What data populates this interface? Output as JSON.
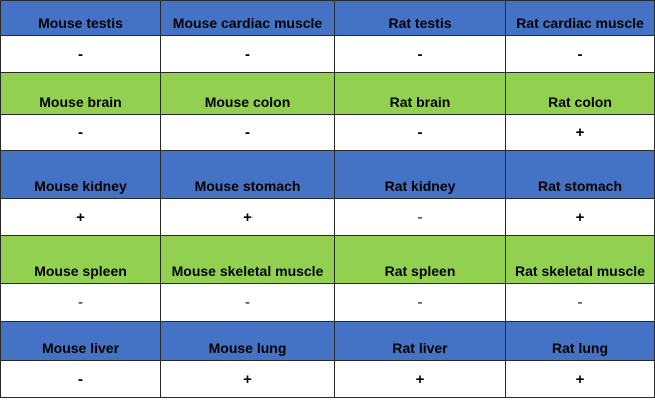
{
  "colors": {
    "blue_header": "#4472c4",
    "green_header": "#92d050"
  },
  "rows": [
    {
      "type": "header",
      "color": "blue",
      "cells": [
        "Mouse testis",
        "Mouse cardiac muscle",
        "Rat testis",
        "Rat cardiac muscle"
      ]
    },
    {
      "type": "values",
      "weight": "bold",
      "cells": [
        "-",
        "-",
        "-",
        "-"
      ]
    },
    {
      "type": "header",
      "color": "green",
      "cells": [
        "Mouse brain",
        "Mouse colon",
        "Rat brain",
        "Rat colon"
      ]
    },
    {
      "type": "values",
      "weight": "bold",
      "cells": [
        "-",
        "-",
        "-",
        "+"
      ]
    },
    {
      "type": "header",
      "color": "blue",
      "cells": [
        "Mouse kidney",
        "Mouse stomach",
        "Rat kidney",
        "Rat stomach"
      ]
    },
    {
      "type": "values",
      "weight": "mixed",
      "cells": [
        "+",
        "+",
        "-",
        "+"
      ]
    },
    {
      "type": "header",
      "color": "green",
      "cells": [
        "Mouse spleen",
        "Mouse skeletal muscle",
        "Rat spleen",
        "Rat skeletal muscle"
      ]
    },
    {
      "type": "values",
      "weight": "normal",
      "cells": [
        "-",
        "-",
        "-",
        "-"
      ]
    },
    {
      "type": "header",
      "color": "blue",
      "cells": [
        "Mouse liver",
        "Mouse lung",
        "Rat liver",
        "Rat lung"
      ]
    },
    {
      "type": "values",
      "weight": "bold",
      "cells": [
        "-",
        "+",
        "+",
        "+"
      ]
    }
  ]
}
